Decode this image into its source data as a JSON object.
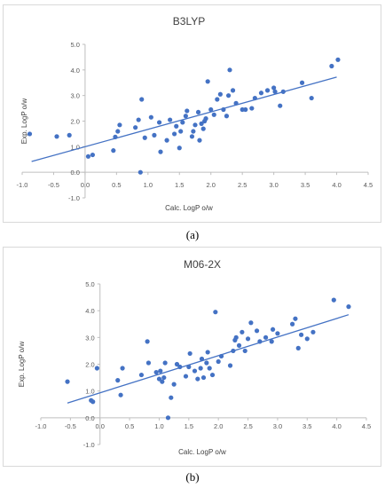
{
  "panels": [
    {
      "caption": "(a)"
    },
    {
      "caption": "(b)"
    }
  ],
  "chart_data": [
    {
      "type": "scatter",
      "title": "B3LYP",
      "xlabel": "Calc. LogP o/w",
      "ylabel": "Exp. LogP o/w",
      "xlim": [
        -1.0,
        4.5
      ],
      "ylim": [
        -1.0,
        5.0
      ],
      "xticks": [
        "-1.0",
        "-0.5",
        "0.0",
        "0.5",
        "1.0",
        "1.5",
        "2.0",
        "2.5",
        "3.0",
        "3.5",
        "4.0",
        "4.5"
      ],
      "yticks": [
        "-1.0",
        "0.0",
        "1.0",
        "2.0",
        "3.0",
        "4.0",
        "5.0"
      ],
      "marker_color": "#4472c4",
      "trendline": {
        "x": [
          -0.85,
          4.0
        ],
        "y": [
          0.42,
          3.72
        ]
      },
      "x": [
        -0.88,
        -0.45,
        -0.25,
        0.05,
        0.12,
        0.45,
        0.48,
        0.52,
        0.55,
        0.8,
        0.85,
        0.88,
        0.9,
        0.95,
        1.05,
        1.1,
        1.18,
        1.2,
        1.3,
        1.35,
        1.42,
        1.45,
        1.5,
        1.52,
        1.55,
        1.6,
        1.62,
        1.7,
        1.72,
        1.75,
        1.8,
        1.82,
        1.85,
        1.88,
        1.9,
        1.92,
        1.95,
        2.0,
        2.05,
        2.1,
        2.15,
        2.2,
        2.25,
        2.28,
        2.3,
        2.35,
        2.4,
        2.5,
        2.55,
        2.65,
        2.7,
        2.8,
        2.9,
        3.0,
        3.02,
        3.1,
        3.15,
        3.45,
        3.6,
        3.92,
        4.02
      ],
      "y": [
        1.5,
        1.4,
        1.45,
        0.62,
        0.68,
        0.85,
        1.38,
        1.6,
        1.85,
        1.75,
        2.05,
        0.0,
        2.85,
        1.35,
        2.15,
        1.45,
        1.95,
        0.8,
        1.25,
        2.05,
        1.5,
        1.8,
        0.95,
        1.6,
        1.95,
        2.2,
        2.4,
        1.4,
        1.6,
        1.85,
        2.35,
        1.25,
        1.9,
        1.7,
        2.0,
        2.1,
        3.55,
        2.45,
        2.25,
        2.85,
        3.05,
        2.45,
        2.2,
        3.0,
        4.0,
        3.2,
        2.7,
        2.45,
        2.45,
        2.5,
        2.9,
        3.1,
        3.2,
        3.3,
        3.15,
        2.6,
        3.15,
        3.5,
        2.9,
        4.15,
        4.4
      ]
    },
    {
      "type": "scatter",
      "title": "M06-2X",
      "xlabel": "Calc. LogP o/w",
      "ylabel": "Exp. LogP o/w",
      "xlim": [
        -1.0,
        4.5
      ],
      "ylim": [
        -1.0,
        5.0
      ],
      "xticks": [
        "-1.0",
        "-0.5",
        "0.0",
        "0.5",
        "1.0",
        "1.5",
        "2.0",
        "2.5",
        "3.0",
        "3.5",
        "4.0",
        "4.5"
      ],
      "yticks": [
        "-1.0",
        "0.0",
        "1.0",
        "2.0",
        "3.0",
        "4.0",
        "5.0"
      ],
      "marker_color": "#4472c4",
      "trendline": {
        "x": [
          -0.55,
          4.2
        ],
        "y": [
          0.55,
          3.85
        ]
      },
      "x": [
        -0.55,
        -0.15,
        -0.12,
        -0.05,
        0.3,
        0.35,
        0.38,
        0.7,
        0.8,
        0.82,
        0.95,
        1.0,
        1.02,
        1.05,
        1.08,
        1.1,
        1.15,
        1.2,
        1.25,
        1.3,
        1.35,
        1.45,
        1.5,
        1.52,
        1.6,
        1.65,
        1.7,
        1.72,
        1.75,
        1.8,
        1.82,
        1.85,
        1.9,
        1.95,
        2.0,
        2.05,
        2.2,
        2.25,
        2.28,
        2.3,
        2.35,
        2.4,
        2.45,
        2.5,
        2.55,
        2.65,
        2.7,
        2.8,
        2.9,
        2.92,
        3.0,
        3.25,
        3.3,
        3.35,
        3.4,
        3.5,
        3.6,
        3.95,
        4.2
      ],
      "y": [
        1.35,
        0.65,
        0.6,
        1.85,
        1.4,
        0.85,
        1.85,
        1.6,
        2.85,
        2.05,
        1.7,
        1.45,
        1.75,
        1.35,
        1.5,
        2.05,
        0.0,
        0.75,
        1.25,
        2.0,
        1.9,
        1.55,
        1.9,
        2.4,
        1.75,
        1.45,
        1.85,
        2.2,
        1.5,
        2.05,
        2.45,
        1.85,
        1.6,
        3.95,
        2.1,
        2.3,
        1.95,
        2.5,
        2.9,
        3.0,
        2.7,
        3.2,
        2.5,
        2.95,
        3.55,
        3.25,
        2.85,
        3.0,
        2.85,
        3.3,
        3.15,
        3.5,
        3.7,
        2.6,
        3.1,
        2.95,
        3.2,
        4.4,
        4.15
      ]
    }
  ]
}
